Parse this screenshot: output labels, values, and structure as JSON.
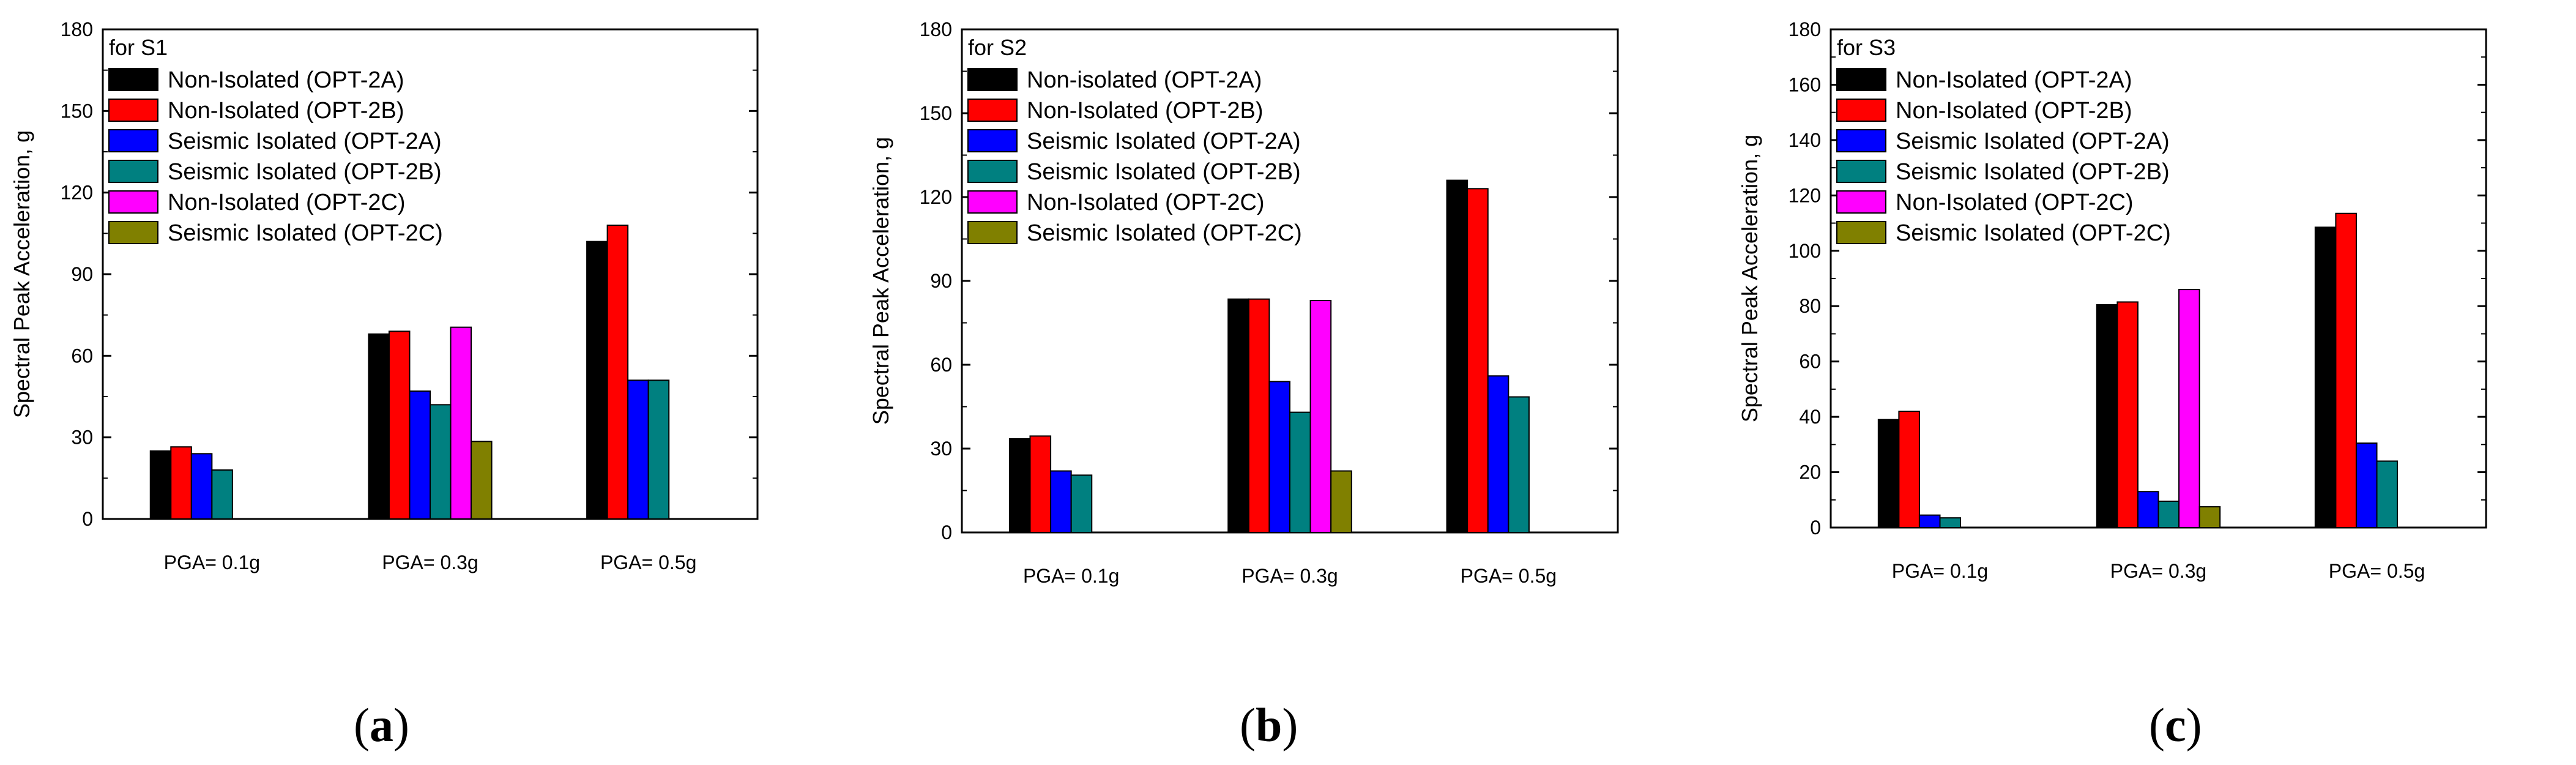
{
  "chart_data": [
    {
      "type": "bar",
      "panel_label": "a",
      "title": "",
      "legend_title": "for S1",
      "categories": [
        "PGA= 0.1g",
        "PGA= 0.3g",
        "PGA= 0.5g"
      ],
      "xlabel": "",
      "ylabel": "Spectral Peak Acceleration, g",
      "ylim": [
        0,
        180
      ],
      "yticks": [
        "0",
        "30",
        "60",
        "90",
        "120",
        "150",
        "180"
      ],
      "grid": false,
      "legend_position": "top-left",
      "series": [
        {
          "name": "Non-Isolated (OPT-2A)",
          "color": "#000000",
          "values": [
            25,
            68,
            102
          ]
        },
        {
          "name": "Non-Isolated (OPT-2B)",
          "color": "#ff0000",
          "values": [
            26.5,
            69,
            108
          ]
        },
        {
          "name": "Seismic Isolated (OPT-2A)",
          "color": "#0000ff",
          "values": [
            24,
            47,
            51
          ]
        },
        {
          "name": "Seismic Isolated (OPT-2B)",
          "color": "#008080",
          "values": [
            18,
            42,
            51
          ]
        },
        {
          "name": "Non-Isolated (OPT-2C)",
          "color": "#ff00ff",
          "values": [
            null,
            70.5,
            null
          ]
        },
        {
          "name": "Seismic Isolated (OPT-2C)",
          "color": "#808000",
          "values": [
            null,
            28.5,
            null
          ]
        }
      ]
    },
    {
      "type": "bar",
      "panel_label": "b",
      "title": "",
      "legend_title": "for S2",
      "categories": [
        "PGA= 0.1g",
        "PGA= 0.3g",
        "PGA= 0.5g"
      ],
      "xlabel": "",
      "ylabel": "Spectral Peak Acceleration, g",
      "ylim": [
        0,
        180
      ],
      "yticks": [
        "0",
        "30",
        "60",
        "90",
        "120",
        "150",
        "180"
      ],
      "grid": false,
      "legend_position": "top-left",
      "series": [
        {
          "name": "Non-isolated (OPT-2A)",
          "color": "#000000",
          "values": [
            33.5,
            83.5,
            126
          ]
        },
        {
          "name": "Non-Isolated (OPT-2B)",
          "color": "#ff0000",
          "values": [
            34.5,
            83.5,
            123
          ]
        },
        {
          "name": "Seismic Isolated (OPT-2A)",
          "color": "#0000ff",
          "values": [
            22,
            54,
            56
          ]
        },
        {
          "name": "Seismic Isolated (OPT-2B)",
          "color": "#008080",
          "values": [
            20.5,
            43,
            48.5
          ]
        },
        {
          "name": "Non-Isolated (OPT-2C)",
          "color": "#ff00ff",
          "values": [
            null,
            83,
            null
          ]
        },
        {
          "name": "Seismic Isolated (OPT-2C)",
          "color": "#808000",
          "values": [
            null,
            22,
            null
          ]
        }
      ]
    },
    {
      "type": "bar",
      "panel_label": "c",
      "title": "",
      "legend_title": "for S3",
      "categories": [
        "PGA= 0.1g",
        "PGA= 0.3g",
        "PGA= 0.5g"
      ],
      "xlabel": "",
      "ylabel": "Spectral Peak Acceleration, g",
      "ylim": [
        0,
        180
      ],
      "yticks": [
        "0",
        "20",
        "40",
        "60",
        "80",
        "100",
        "120",
        "140",
        "160",
        "180"
      ],
      "grid": false,
      "legend_position": "top-left",
      "series": [
        {
          "name": "Non-Isolated (OPT-2A)",
          "color": "#000000",
          "values": [
            39,
            80.5,
            108.5
          ]
        },
        {
          "name": "Non-Isolated (OPT-2B)",
          "color": "#ff0000",
          "values": [
            42,
            81.5,
            113.5
          ]
        },
        {
          "name": "Seismic Isolated (OPT-2A)",
          "color": "#0000ff",
          "values": [
            4.5,
            13,
            30.5
          ]
        },
        {
          "name": "Seismic Isolated (OPT-2B)",
          "color": "#008080",
          "values": [
            3.5,
            9.5,
            24
          ]
        },
        {
          "name": "Non-Isolated (OPT-2C)",
          "color": "#ff00ff",
          "values": [
            null,
            86,
            null
          ]
        },
        {
          "name": "Seismic Isolated (OPT-2C)",
          "color": "#808000",
          "values": [
            null,
            7.5,
            null
          ]
        }
      ]
    }
  ]
}
